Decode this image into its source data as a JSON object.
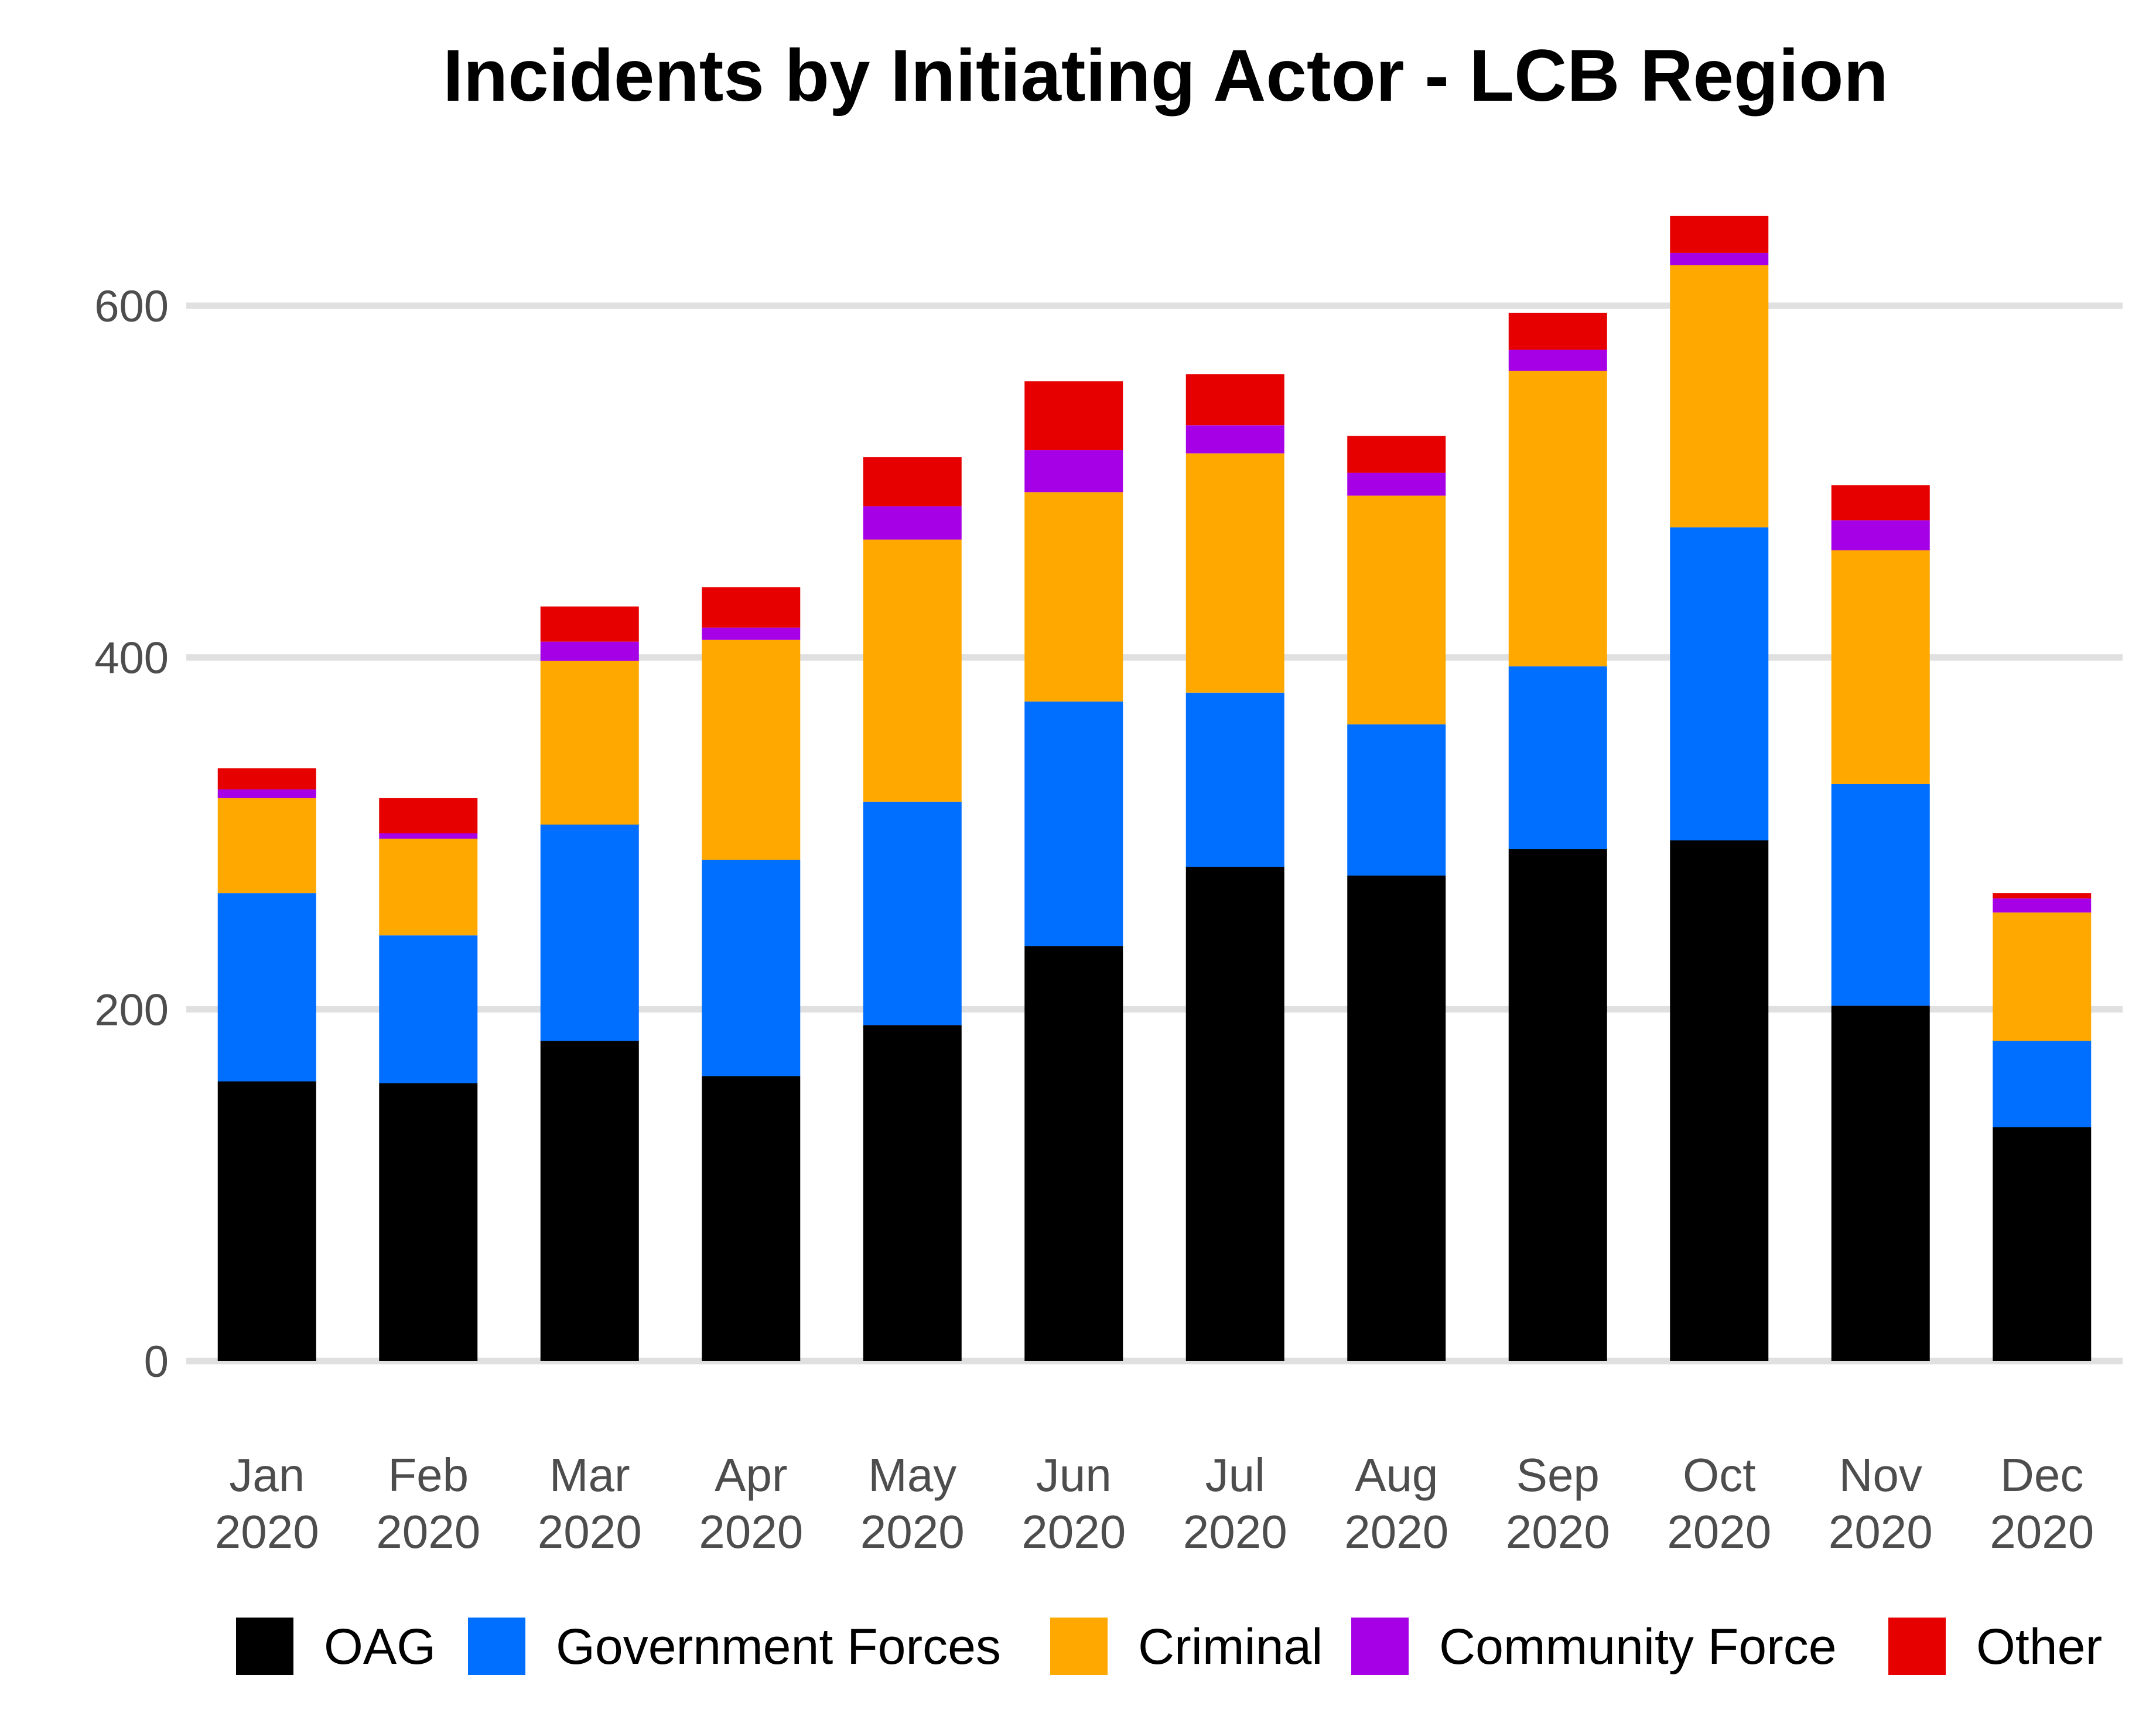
{
  "chart_data": {
    "type": "bar",
    "stacked": true,
    "title": "Incidents by Initiating Actor - LCB Region",
    "xlabel": "",
    "ylabel": "",
    "ylim": [
      0,
      650
    ],
    "yticks": [
      0,
      200,
      400,
      600
    ],
    "grid": "horizontal",
    "legend_position": "bottom",
    "categories": [
      [
        "Jan",
        "2020"
      ],
      [
        "Feb",
        "2020"
      ],
      [
        "Mar",
        "2020"
      ],
      [
        "Apr",
        "2020"
      ],
      [
        "May",
        "2020"
      ],
      [
        "Jun",
        "2020"
      ],
      [
        "Jul",
        "2020"
      ],
      [
        "Aug",
        "2020"
      ],
      [
        "Sep",
        "2020"
      ],
      [
        "Oct",
        "2020"
      ],
      [
        "Nov",
        "2020"
      ],
      [
        "Dec",
        "2020"
      ]
    ],
    "series": [
      {
        "name": "OAG",
        "color": "#000000",
        "values": [
          159,
          158,
          182,
          162,
          191,
          236,
          281,
          276,
          291,
          296,
          202,
          133
        ]
      },
      {
        "name": "Government Forces",
        "color": "#006eff",
        "values": [
          107,
          84,
          123,
          123,
          127,
          139,
          99,
          86,
          104,
          178,
          126,
          49
        ]
      },
      {
        "name": "Criminal",
        "color": "#ffa800",
        "values": [
          54,
          55,
          93,
          125,
          149,
          119,
          136,
          130,
          168,
          149,
          133,
          73
        ]
      },
      {
        "name": "Community Force",
        "color": "#a600e6",
        "values": [
          5,
          3,
          11,
          7,
          19,
          24,
          16,
          13,
          12,
          7,
          17,
          8
        ]
      },
      {
        "name": "Other",
        "color": "#e60000",
        "values": [
          12,
          20,
          20,
          23,
          28,
          39,
          29,
          21,
          21,
          21,
          20,
          3
        ]
      }
    ]
  }
}
